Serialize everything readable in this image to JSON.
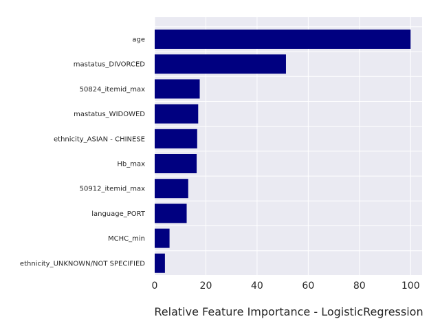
{
  "chart_data": {
    "type": "bar",
    "orientation": "horizontal",
    "categories": [
      "age",
      "mastatus_DIVORCED",
      "50824_itemid_max",
      "mastatus_WIDOWED",
      "ethnicity_ASIAN - CHINESE",
      "Hb_max",
      "50912_itemid_max",
      "language_PORT",
      "MCHC_min",
      "ethnicity_UNKNOWN/NOT SPECIFIED"
    ],
    "values": [
      100,
      51.3,
      17.6,
      17.0,
      16.6,
      16.4,
      13.1,
      12.5,
      5.8,
      4.0
    ],
    "xlabel": "Relative Feature Importance - LogisticRegression",
    "ylabel": "",
    "title": "",
    "xlim": [
      0,
      104.5
    ],
    "xticks": [
      0,
      20,
      40,
      60,
      80,
      100
    ],
    "grid": true,
    "bar_color": "#000080",
    "background_color": "#eaeaf2",
    "grid_color": "#ffffff"
  }
}
